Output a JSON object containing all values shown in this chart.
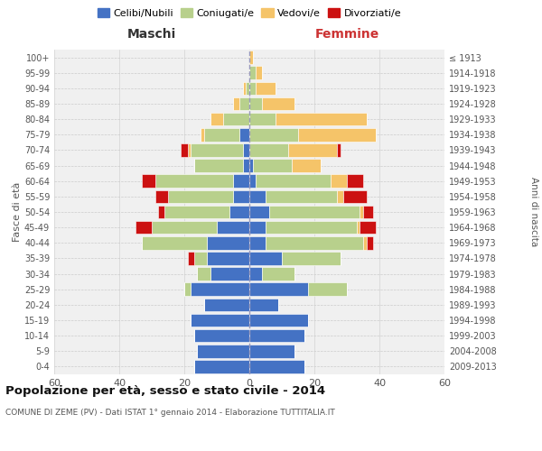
{
  "age_groups": [
    "0-4",
    "5-9",
    "10-14",
    "15-19",
    "20-24",
    "25-29",
    "30-34",
    "35-39",
    "40-44",
    "45-49",
    "50-54",
    "55-59",
    "60-64",
    "65-69",
    "70-74",
    "75-79",
    "80-84",
    "85-89",
    "90-94",
    "95-99",
    "100+"
  ],
  "birth_years": [
    "2009-2013",
    "2004-2008",
    "1999-2003",
    "1994-1998",
    "1989-1993",
    "1984-1988",
    "1979-1983",
    "1974-1978",
    "1969-1973",
    "1964-1968",
    "1959-1963",
    "1954-1958",
    "1949-1953",
    "1944-1948",
    "1939-1943",
    "1934-1938",
    "1929-1933",
    "1924-1928",
    "1919-1923",
    "1914-1918",
    "≤ 1913"
  ],
  "maschi": {
    "celibi": [
      17,
      16,
      17,
      18,
      14,
      18,
      12,
      13,
      13,
      10,
      6,
      5,
      5,
      2,
      2,
      3,
      0,
      0,
      0,
      0,
      0
    ],
    "coniugati": [
      0,
      0,
      0,
      0,
      0,
      2,
      4,
      4,
      20,
      20,
      20,
      20,
      24,
      15,
      16,
      11,
      8,
      3,
      1,
      0,
      0
    ],
    "vedovi": [
      0,
      0,
      0,
      0,
      0,
      0,
      0,
      0,
      0,
      0,
      0,
      0,
      0,
      0,
      1,
      1,
      4,
      2,
      1,
      0,
      0
    ],
    "divorziati": [
      0,
      0,
      0,
      0,
      0,
      0,
      0,
      2,
      0,
      5,
      2,
      4,
      4,
      0,
      2,
      0,
      0,
      0,
      0,
      0,
      0
    ]
  },
  "femmine": {
    "nubili": [
      17,
      14,
      17,
      18,
      9,
      18,
      4,
      10,
      5,
      5,
      6,
      5,
      2,
      1,
      0,
      0,
      0,
      0,
      0,
      0,
      0
    ],
    "coniugate": [
      0,
      0,
      0,
      0,
      0,
      12,
      10,
      18,
      30,
      28,
      28,
      22,
      23,
      12,
      12,
      15,
      8,
      4,
      2,
      2,
      0
    ],
    "vedove": [
      0,
      0,
      0,
      0,
      0,
      0,
      0,
      0,
      1,
      1,
      1,
      2,
      5,
      9,
      15,
      24,
      28,
      10,
      6,
      2,
      1
    ],
    "divorziate": [
      0,
      0,
      0,
      0,
      0,
      0,
      0,
      0,
      2,
      5,
      3,
      7,
      5,
      0,
      1,
      0,
      0,
      0,
      0,
      0,
      0
    ]
  },
  "colors": {
    "celibi_nubili": "#4472c4",
    "coniugati": "#b8d08c",
    "vedovi": "#f5c469",
    "divorziati": "#cc1111"
  },
  "title_main": "Popolazione per età, sesso e stato civile - 2014",
  "title_sub": "COMUNE DI ZEME (PV) - Dati ISTAT 1° gennaio 2014 - Elaborazione TUTTITALIA.IT",
  "xlabel_left": "Maschi",
  "xlabel_right": "Femmine",
  "ylabel_left": "Fasce di età",
  "ylabel_right": "Anni di nascita",
  "xmin": -60,
  "xmax": 60,
  "bg_color": "#ffffff",
  "plot_bg": "#f0f0f0"
}
